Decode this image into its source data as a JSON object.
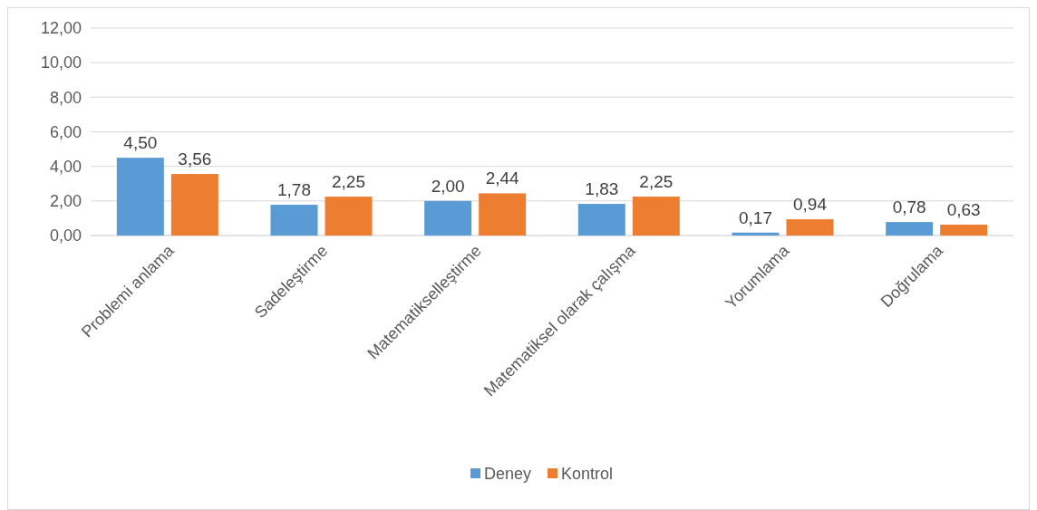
{
  "chart_data": {
    "type": "bar",
    "categories": [
      "Problemi anlama",
      "Sadeleştirme",
      "Matematikselleştirme",
      "Matematiksel olarak çalışma",
      "Yorumlama",
      "Doğrulama"
    ],
    "series": [
      {
        "name": "Deney",
        "color": "#5b9bd5",
        "values": [
          4.5,
          1.78,
          2,
          1.83,
          0.17,
          0.78
        ],
        "value_labels": [
          "4,50",
          "1,78",
          "2,00",
          "1,83",
          "0,17",
          "0,78"
        ]
      },
      {
        "name": "Kontrol",
        "color": "#ed7d31",
        "values": [
          3.56,
          2.25,
          2.44,
          2.25,
          0.94,
          0.63
        ],
        "value_labels": [
          "3,56",
          "2,25",
          "2,44",
          "2,25",
          "0,94",
          "0,63"
        ]
      }
    ],
    "ylim": [
      0,
      12
    ],
    "yticks": [
      {
        "value": 0,
        "label": "0,00"
      },
      {
        "value": 2,
        "label": "2,00"
      },
      {
        "value": 4,
        "label": "4,00"
      },
      {
        "value": 6,
        "label": "6,00"
      },
      {
        "value": 8,
        "label": "8,00"
      },
      {
        "value": 10,
        "label": "10,00"
      },
      {
        "value": 12,
        "label": "12,00"
      }
    ],
    "grid": "y",
    "legend": "bottom"
  }
}
